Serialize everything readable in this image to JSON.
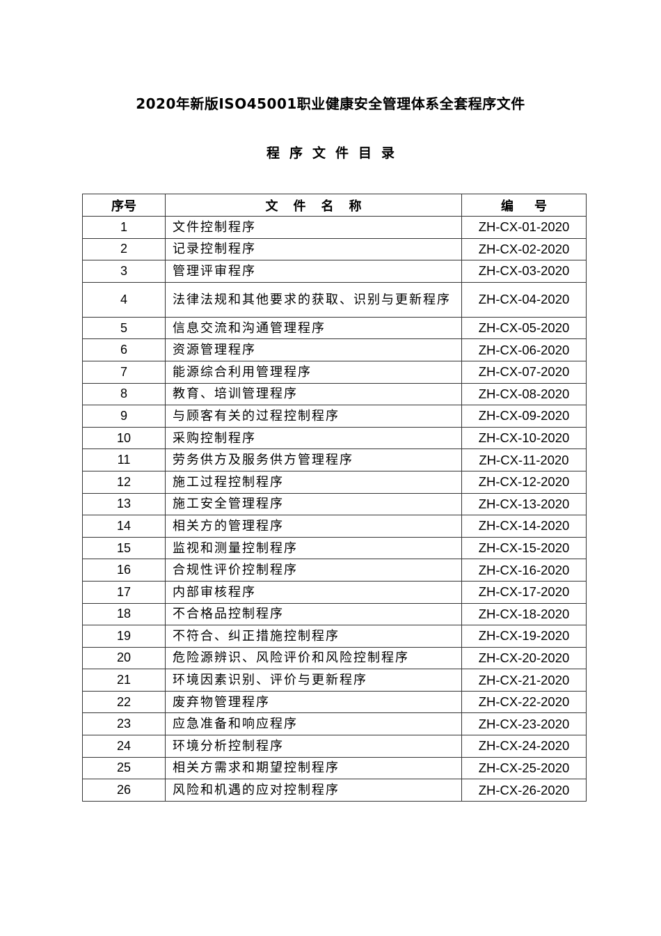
{
  "document": {
    "title": "2020年新版ISO45001职业健康安全管理体系全套程序文件",
    "subtitle": "程序文件目录",
    "table": {
      "headers": [
        "序号",
        "文件名称",
        "编号"
      ],
      "rows": [
        {
          "no": "1",
          "name": "文件控制程序",
          "code": "ZH-CX-01-2020"
        },
        {
          "no": "2",
          "name": "记录控制程序",
          "code": "ZH-CX-02-2020"
        },
        {
          "no": "3",
          "name": "管理评审程序",
          "code": "ZH-CX-03-2020"
        },
        {
          "no": "4",
          "name": "法律法规和其他要求的获取、识别与更新程序",
          "code": "ZH-CX-04-2020"
        },
        {
          "no": "5",
          "name": "信息交流和沟通管理程序",
          "code": "ZH-CX-05-2020"
        },
        {
          "no": "6",
          "name": "资源管理程序",
          "code": "ZH-CX-06-2020"
        },
        {
          "no": "7",
          "name": "能源综合利用管理程序",
          "code": "ZH-CX-07-2020"
        },
        {
          "no": "8",
          "name": "教育、培训管理程序",
          "code": "ZH-CX-08-2020"
        },
        {
          "no": "9",
          "name": "与顾客有关的过程控制程序",
          "code": "ZH-CX-09-2020"
        },
        {
          "no": "10",
          "name": "采购控制程序",
          "code": "ZH-CX-10-2020"
        },
        {
          "no": "11",
          "name": "劳务供方及服务供方管理程序",
          "code": "ZH-CX-11-2020"
        },
        {
          "no": "12",
          "name": "施工过程控制程序",
          "code": "ZH-CX-12-2020"
        },
        {
          "no": "13",
          "name": "施工安全管理程序",
          "code": "ZH-CX-13-2020"
        },
        {
          "no": "14",
          "name": "相关方的管理程序",
          "code": "ZH-CX-14-2020"
        },
        {
          "no": "15",
          "name": "监视和测量控制程序",
          "code": "ZH-CX-15-2020"
        },
        {
          "no": "16",
          "name": "合规性评价控制程序",
          "code": "ZH-CX-16-2020"
        },
        {
          "no": "17",
          "name": "内部审核程序",
          "code": "ZH-CX-17-2020"
        },
        {
          "no": "18",
          "name": "不合格品控制程序",
          "code": "ZH-CX-18-2020"
        },
        {
          "no": "19",
          "name": "不符合、纠正措施控制程序",
          "code": "ZH-CX-19-2020"
        },
        {
          "no": "20",
          "name": "危险源辨识、风险评价和风险控制程序",
          "code": "ZH-CX-20-2020"
        },
        {
          "no": "21",
          "name": "环境因素识别、评价与更新程序",
          "code": "ZH-CX-21-2020"
        },
        {
          "no": "22",
          "name": "废弃物管理程序",
          "code": "ZH-CX-22-2020"
        },
        {
          "no": "23",
          "name": "应急准备和响应程序",
          "code": "ZH-CX-23-2020"
        },
        {
          "no": "24",
          "name": "环境分析控制程序",
          "code": "ZH-CX-24-2020"
        },
        {
          "no": "25",
          "name": "相关方需求和期望控制程序",
          "code": "ZH-CX-25-2020"
        },
        {
          "no": "26",
          "name": "风险和机遇的应对控制程序",
          "code": "ZH-CX-26-2020"
        }
      ]
    }
  }
}
